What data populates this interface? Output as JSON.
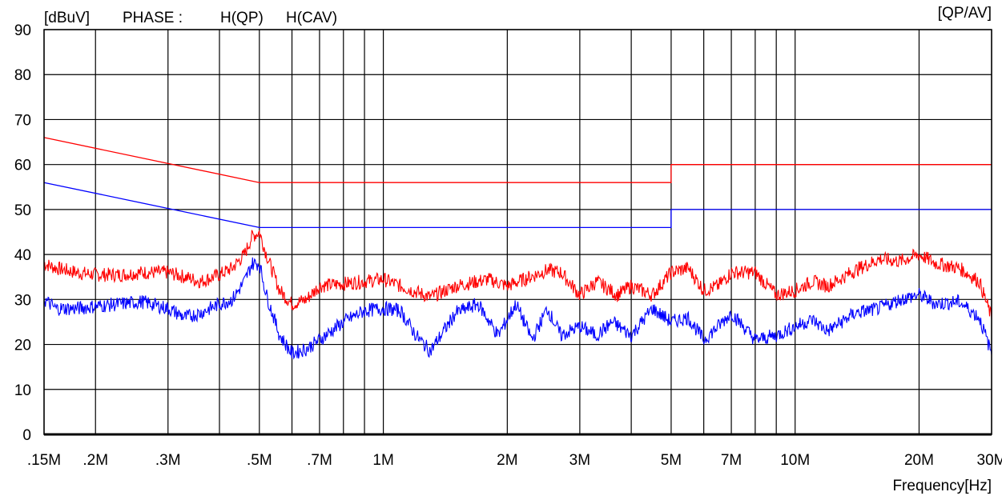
{
  "header": {
    "unit_label": "[dBuV]",
    "phase_label": "PHASE :",
    "qp_label": "H(QP)",
    "cav_label": "H(CAV)",
    "mode_label": "[QP/AV]"
  },
  "colors": {
    "qp": "#ff0000",
    "cav": "#0000ff",
    "grid": "#000000"
  },
  "chart_data": {
    "type": "line",
    "xscale": "log",
    "xlabel": "Frequency[Hz]",
    "ylabel": "[dBuV]",
    "xlim": [
      150000,
      30000000
    ],
    "ylim": [
      0,
      90
    ],
    "y_ticks": [
      0,
      10,
      20,
      30,
      40,
      50,
      60,
      70,
      80,
      90
    ],
    "y_tick_labels": [
      "0",
      "10",
      "20",
      "30",
      "40",
      "50",
      "60",
      "70",
      "80",
      "90"
    ],
    "x_tick_labels": [
      {
        "value": 150000,
        "label": ".15M"
      },
      {
        "value": 200000,
        "label": ".2M"
      },
      {
        "value": 300000,
        "label": ".3M"
      },
      {
        "value": 500000,
        "label": ".5M"
      },
      {
        "value": 700000,
        "label": ".7M"
      },
      {
        "value": 1000000,
        "label": "1M"
      },
      {
        "value": 2000000,
        "label": "2M"
      },
      {
        "value": 3000000,
        "label": "3M"
      },
      {
        "value": 5000000,
        "label": "5M"
      },
      {
        "value": 7000000,
        "label": "7M"
      },
      {
        "value": 10000000,
        "label": "10M"
      },
      {
        "value": 20000000,
        "label": "20M"
      },
      {
        "value": 30000000,
        "label": "30M"
      }
    ],
    "x_grid": [
      150000,
      200000,
      300000,
      400000,
      500000,
      600000,
      700000,
      800000,
      900000,
      1000000,
      2000000,
      3000000,
      4000000,
      5000000,
      6000000,
      7000000,
      8000000,
      9000000,
      10000000,
      20000000,
      30000000
    ],
    "grid": true,
    "limits": [
      {
        "name": "QP limit",
        "color": "#ff0000",
        "x": [
          150000,
          500000,
          500000,
          5000000,
          5000000,
          30000000
        ],
        "y": [
          66,
          56,
          56,
          56,
          60,
          60
        ]
      },
      {
        "name": "AV limit",
        "color": "#0000ff",
        "x": [
          150000,
          500000,
          500000,
          5000000,
          5000000,
          30000000
        ],
        "y": [
          56,
          46,
          46,
          46,
          50,
          50
        ]
      }
    ],
    "series": [
      {
        "name": "H(QP)",
        "color": "#ff0000",
        "x": [
          150000,
          160000,
          180000,
          200000,
          230000,
          260000,
          300000,
          330000,
          360000,
          400000,
          430000,
          460000,
          480000,
          500000,
          520000,
          560000,
          600000,
          650000,
          700000,
          800000,
          900000,
          1000000,
          1100000,
          1300000,
          1500000,
          1800000,
          2000000,
          2200000,
          2500000,
          2700000,
          3000000,
          3300000,
          3700000,
          4000000,
          4500000,
          5000000,
          5500000,
          6000000,
          6500000,
          7000000,
          8000000,
          9000000,
          10000000,
          11000000,
          12000000,
          14000000,
          16000000,
          18000000,
          20000000,
          22000000,
          25000000,
          28000000,
          30000000
        ],
        "y": [
          38,
          37,
          36,
          35.5,
          35.5,
          36,
          36,
          35,
          34,
          35.5,
          37,
          40,
          44,
          45,
          40,
          32,
          29,
          30,
          33,
          33.5,
          34,
          34.5,
          33,
          30.5,
          33,
          34.5,
          33,
          34.5,
          36.5,
          36,
          31,
          34,
          31,
          33,
          31,
          36,
          37,
          32,
          33,
          36,
          36,
          31,
          32,
          34,
          33,
          36.5,
          39,
          38.5,
          40,
          38,
          37,
          34,
          26
        ]
      },
      {
        "name": "H(CAV)",
        "color": "#0000ff",
        "x": [
          150000,
          160000,
          180000,
          200000,
          230000,
          260000,
          300000,
          330000,
          360000,
          400000,
          430000,
          460000,
          480000,
          500000,
          520000,
          560000,
          600000,
          650000,
          700000,
          800000,
          900000,
          1000000,
          1100000,
          1200000,
          1300000,
          1500000,
          1700000,
          1900000,
          2100000,
          2300000,
          2500000,
          2700000,
          3000000,
          3300000,
          3600000,
          4000000,
          4500000,
          5000000,
          5500000,
          6000000,
          6500000,
          7000000,
          8000000,
          9000000,
          10000000,
          11000000,
          12000000,
          14000000,
          16000000,
          18000000,
          20000000,
          22000000,
          25000000,
          28000000,
          30000000
        ],
        "y": [
          30,
          28,
          28,
          28.5,
          29,
          29.5,
          28,
          26,
          27,
          29,
          30,
          34,
          38,
          38,
          31,
          22,
          18,
          19,
          21,
          25,
          27.5,
          28,
          27.5,
          22,
          18.5,
          27,
          29,
          22,
          29,
          21,
          28,
          22,
          24,
          22,
          25,
          22,
          28,
          25,
          26,
          21,
          24,
          27,
          21,
          22,
          24,
          25.5,
          23,
          27,
          28,
          30,
          31,
          29,
          29.5,
          26,
          18
        ]
      }
    ]
  }
}
